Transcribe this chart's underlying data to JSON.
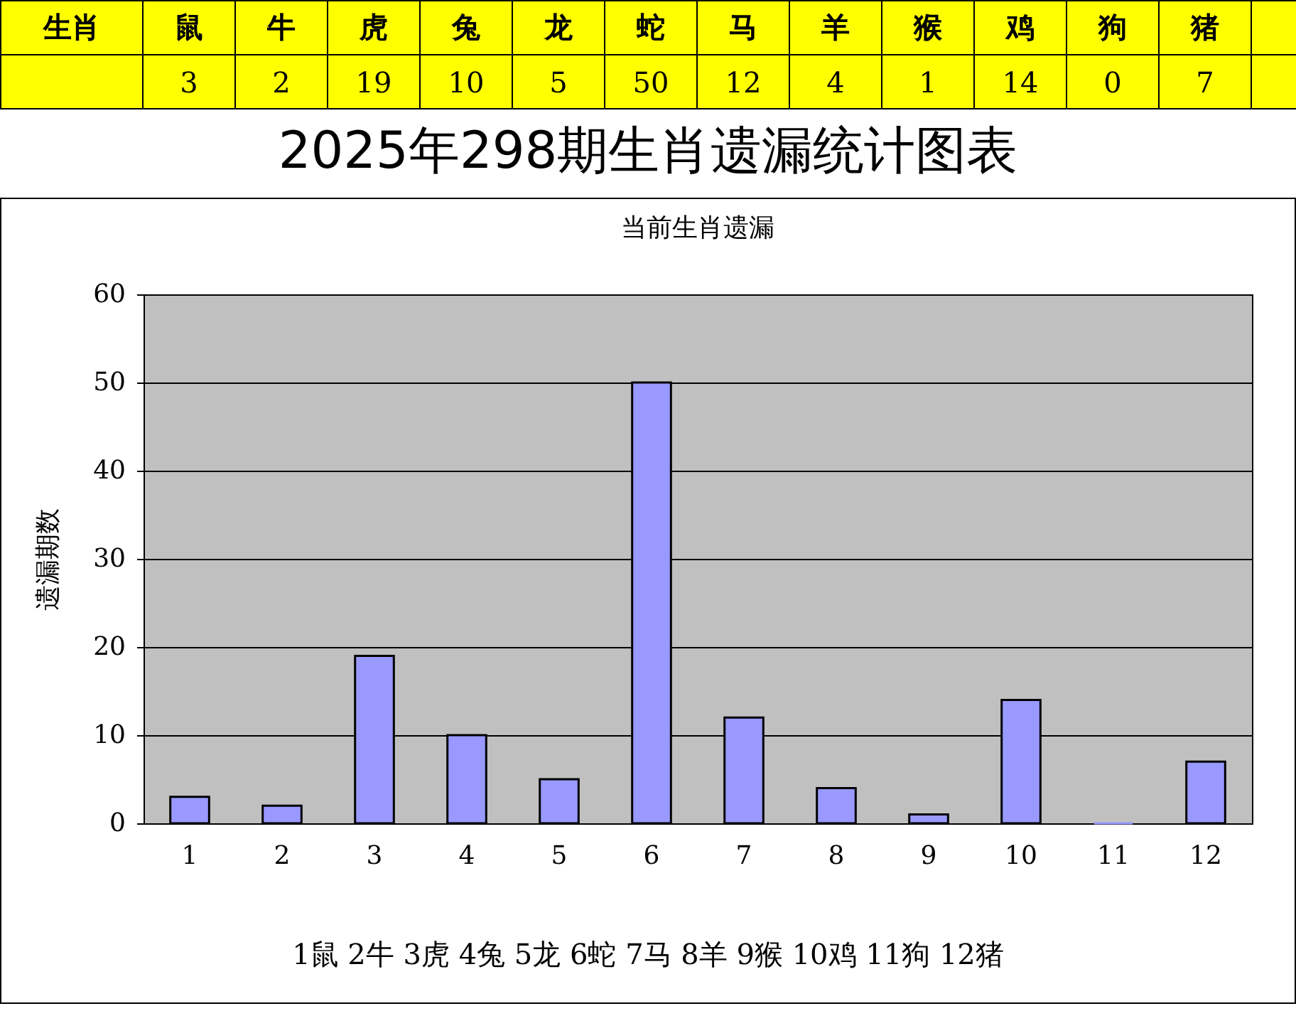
{
  "chart_data": {
    "type": "bar",
    "title": "2025年298期生肖遗漏统计图表",
    "subtitle": "当前生肖遗漏",
    "ylabel": "遗漏期数",
    "categories": [
      "1",
      "2",
      "3",
      "4",
      "5",
      "6",
      "7",
      "8",
      "9",
      "10",
      "11",
      "12"
    ],
    "values": [
      3,
      2,
      19,
      10,
      5,
      50,
      12,
      4,
      1,
      14,
      0,
      7
    ],
    "color": "#9999ff",
    "ylim": [
      0,
      60
    ],
    "yticks": [
      0,
      10,
      20,
      30,
      40,
      50,
      60
    ],
    "grid": "y",
    "data_labels": true,
    "annotations": [
      "生肖",
      "鼠",
      "牛",
      "虎",
      "兔",
      "龙",
      "蛇",
      "马",
      "羊",
      "猴",
      "鸡",
      "狗",
      "猪",
      "1鼠  2牛  3虎  4兔  5龙  6蛇  7马  8羊  9猴  10鸡  11狗  12猪"
    ]
  }
}
